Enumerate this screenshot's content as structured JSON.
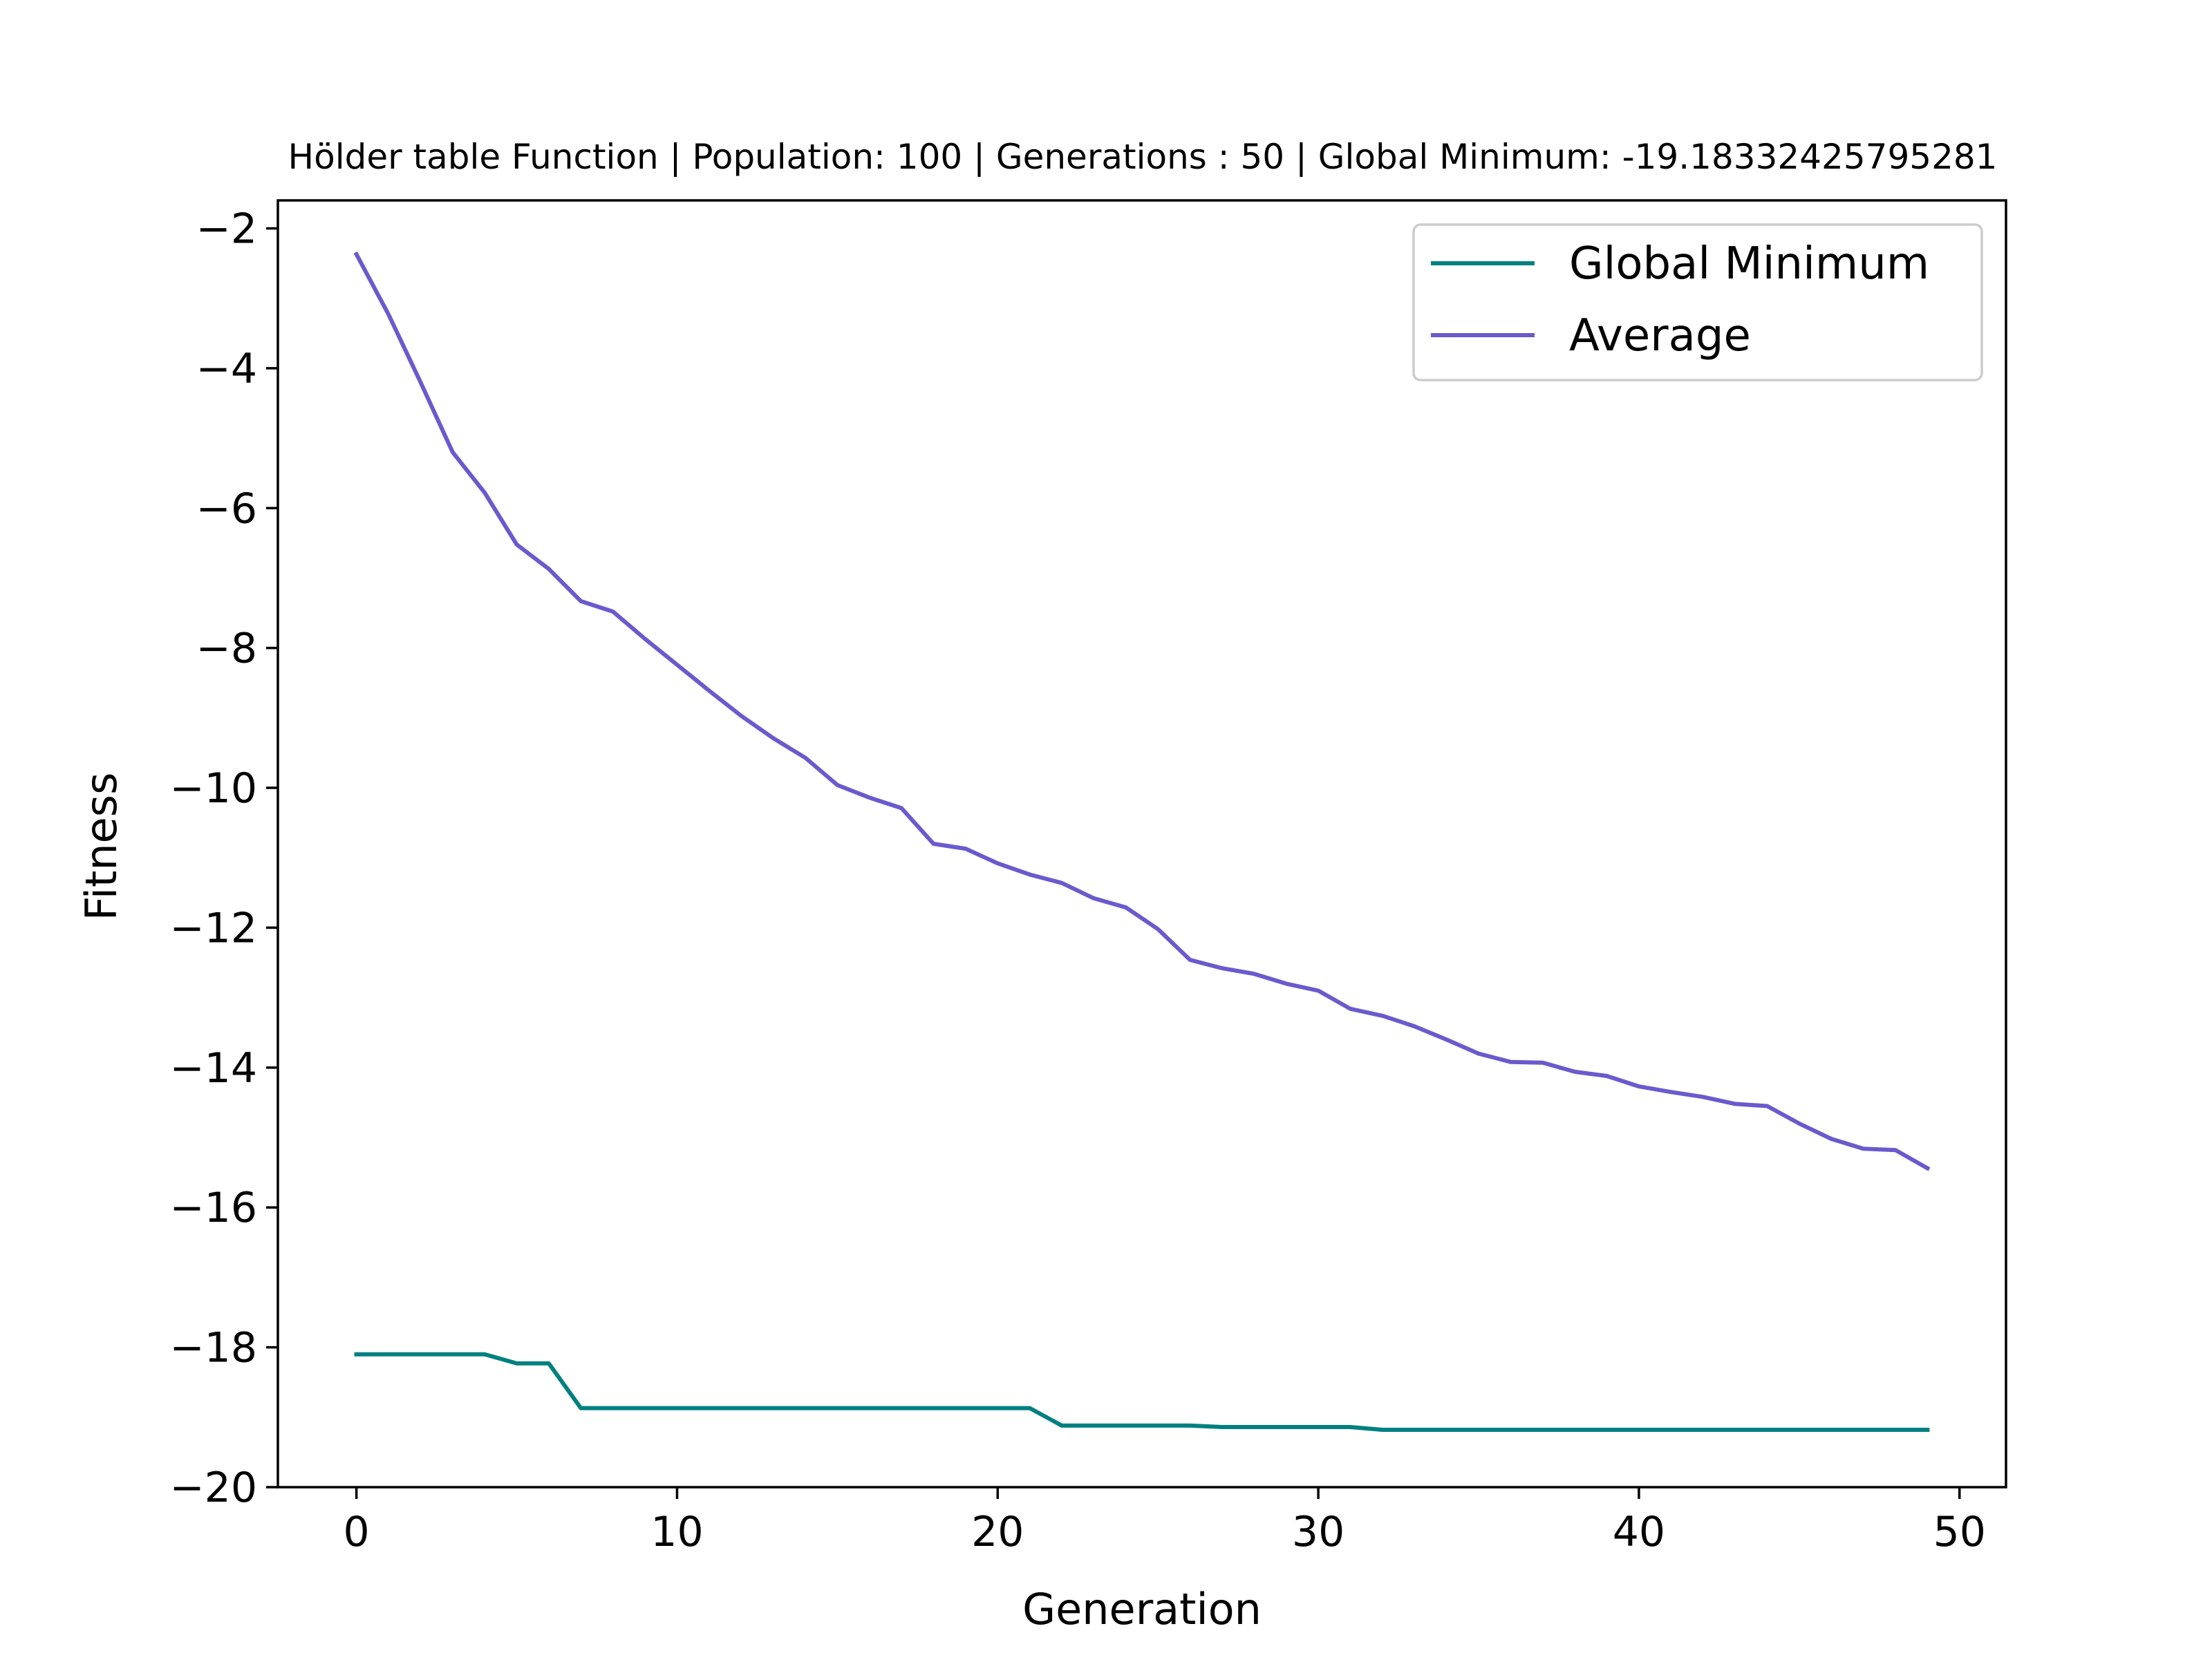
{
  "chart_data": {
    "type": "line",
    "title": "Hölder table Function | Population: 100 | Generations : 50 | Global Minimum: -19.18332425795281",
    "xlabel": "Generation",
    "ylabel": "Fitness",
    "xlim": [
      -2.45,
      51.45
    ],
    "ylim": [
      -20,
      -1.6
    ],
    "xticks": [
      0,
      10,
      20,
      30,
      40,
      50
    ],
    "xtick_labels": [
      "0",
      "10",
      "20",
      "30",
      "40",
      "50"
    ],
    "yticks": [
      -20,
      -18,
      -16,
      -14,
      -12,
      -10,
      -8,
      -6,
      -4,
      -2
    ],
    "ytick_labels": [
      "−20",
      "−18",
      "−16",
      "−14",
      "−12",
      "−10",
      "−8",
      "−6",
      "−4",
      "−2"
    ],
    "grid": false,
    "legend_position": "top-right",
    "x": [
      0,
      1,
      2,
      3,
      4,
      5,
      6,
      7,
      8,
      9,
      10,
      11,
      12,
      13,
      14,
      15,
      16,
      17,
      18,
      19,
      20,
      21,
      22,
      23,
      24,
      25,
      26,
      27,
      28,
      29,
      30,
      31,
      32,
      33,
      34,
      35,
      36,
      37,
      38,
      39,
      40,
      41,
      42,
      43,
      44,
      45,
      46,
      47,
      48,
      49
    ],
    "series": [
      {
        "name": "Global Minimum",
        "color": "#008080",
        "values": [
          -18.1,
          -18.1,
          -18.1,
          -18.1,
          -18.1,
          -18.23,
          -18.23,
          -18.87,
          -18.87,
          -18.87,
          -18.87,
          -18.87,
          -18.87,
          -18.87,
          -18.87,
          -18.87,
          -18.87,
          -18.87,
          -18.87,
          -18.87,
          -18.87,
          -18.87,
          -19.12,
          -19.12,
          -19.12,
          -19.12,
          -19.12,
          -19.14,
          -19.14,
          -19.14,
          -19.14,
          -19.14,
          -19.18,
          -19.18,
          -19.18,
          -19.18,
          -19.18,
          -19.18,
          -19.18,
          -19.18,
          -19.18,
          -19.18,
          -19.18,
          -19.18,
          -19.18,
          -19.18,
          -19.18,
          -19.18,
          -19.18,
          -19.18
        ]
      },
      {
        "name": "Average",
        "color": "#6a5acd",
        "values": [
          -2.37,
          -3.23,
          -4.2,
          -5.2,
          -5.78,
          -6.52,
          -6.87,
          -7.33,
          -7.48,
          -7.87,
          -8.24,
          -8.61,
          -8.97,
          -9.29,
          -9.57,
          -9.96,
          -10.14,
          -10.29,
          -10.8,
          -10.87,
          -11.08,
          -11.24,
          -11.36,
          -11.58,
          -11.71,
          -12.02,
          -12.46,
          -12.58,
          -12.66,
          -12.8,
          -12.9,
          -13.16,
          -13.26,
          -13.41,
          -13.6,
          -13.8,
          -13.92,
          -13.93,
          -14.06,
          -14.12,
          -14.27,
          -14.35,
          -14.42,
          -14.52,
          -14.55,
          -14.8,
          -15.02,
          -15.16,
          -15.18,
          -15.44
        ]
      }
    ]
  }
}
